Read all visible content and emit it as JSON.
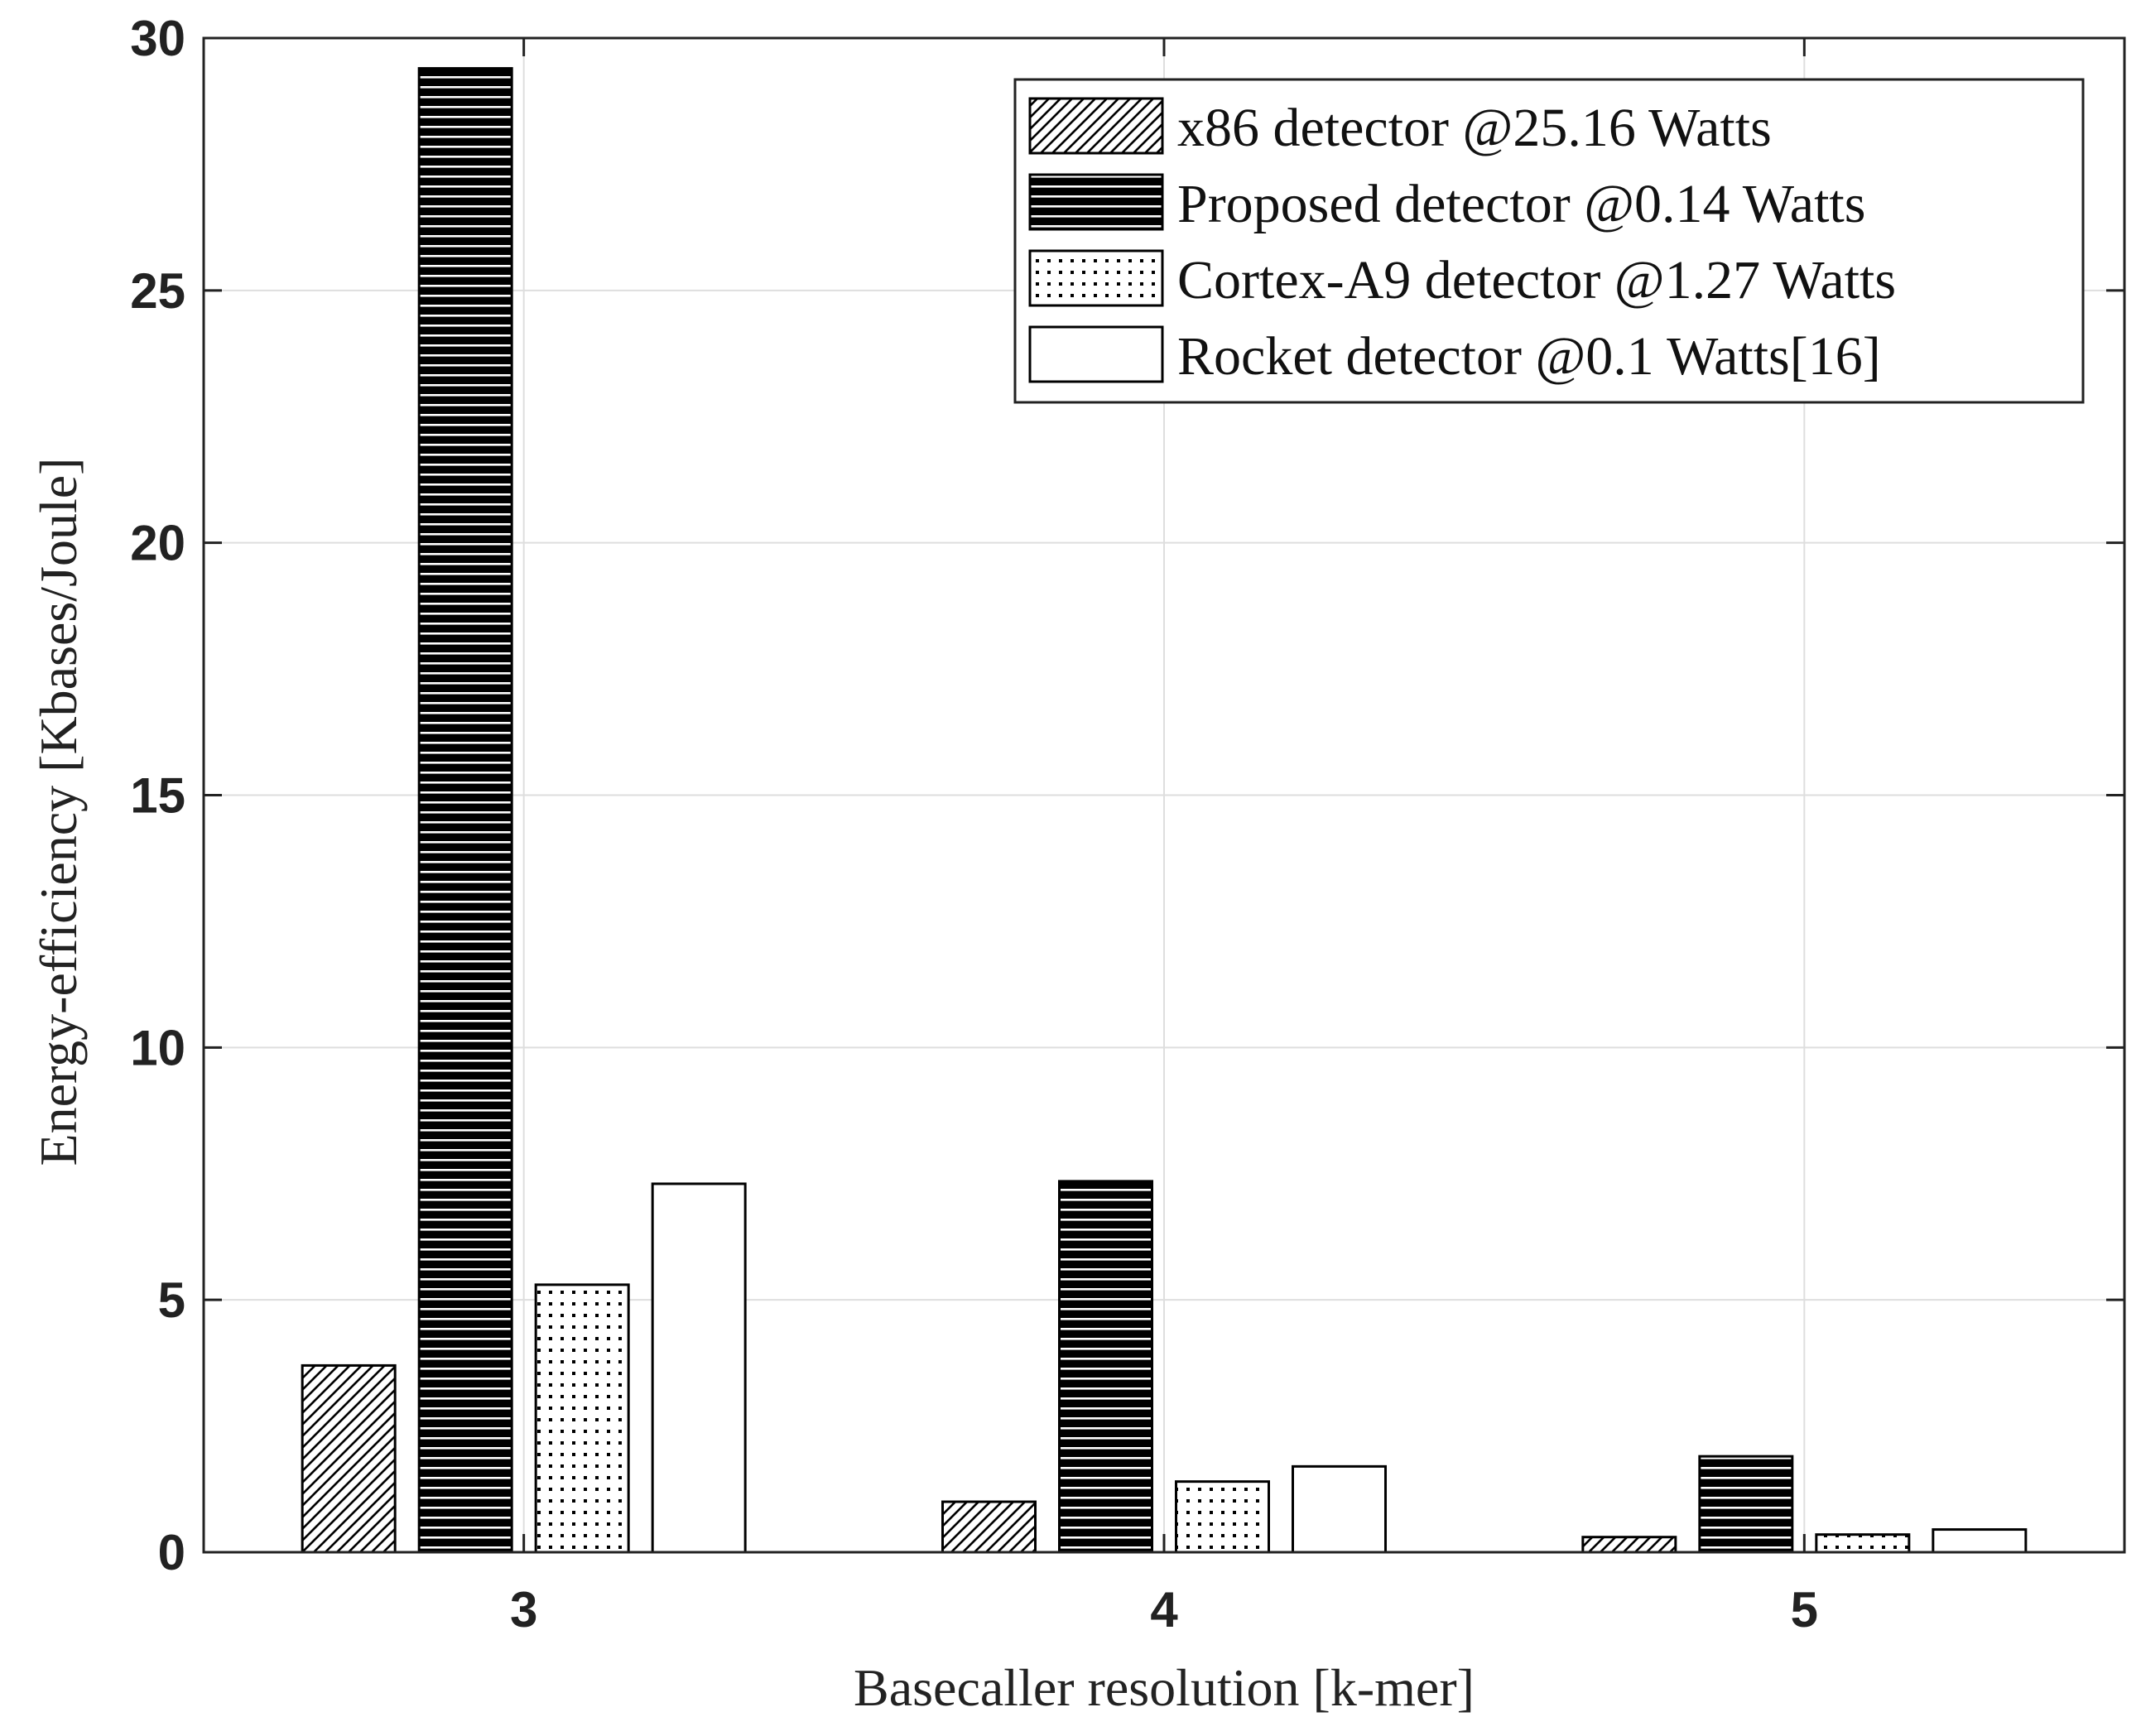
{
  "chart_data": {
    "type": "bar",
    "title": "",
    "xlabel": "Basecaller resolution [k-mer]",
    "ylabel": "Energy-efficiency [Kbases/Joule]",
    "categories": [
      "3",
      "4",
      "5"
    ],
    "ylim": [
      0,
      30
    ],
    "yticks": [
      "0",
      "5",
      "10",
      "15",
      "20",
      "25",
      "30"
    ],
    "grid": true,
    "legend_position": "top-right",
    "series": [
      {
        "name": "x86 detector @25.16 Watts",
        "pattern": "diagonal-hatch",
        "values": [
          3.7,
          1.0,
          0.3
        ]
      },
      {
        "name": "Proposed detector @0.14 Watts",
        "pattern": "horizontal-lines",
        "values": [
          29.4,
          7.35,
          1.9
        ]
      },
      {
        "name": "Cortex-A9 detector @1.27 Watts",
        "pattern": "dotted",
        "values": [
          5.3,
          1.4,
          0.35
        ]
      },
      {
        "name": "Rocket detector @0.1 Watts[16]",
        "pattern": "empty",
        "values": [
          7.3,
          1.7,
          0.45
        ]
      }
    ]
  }
}
